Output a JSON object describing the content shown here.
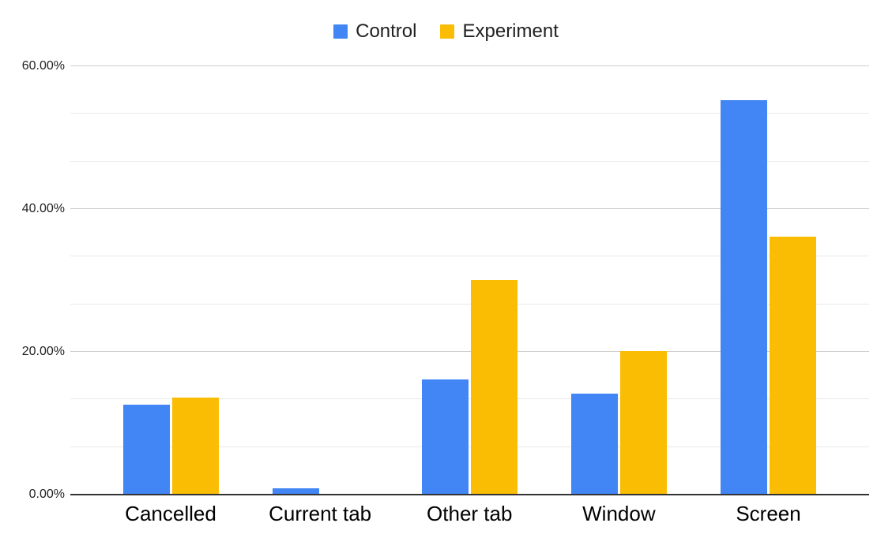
{
  "chart_data": {
    "type": "bar",
    "title": "",
    "xlabel": "",
    "ylabel": "",
    "categories": [
      "Cancelled",
      "Current tab",
      "Other tab",
      "Window",
      "Screen"
    ],
    "series": [
      {
        "name": "Control",
        "color": "#4285F4",
        "values": [
          12.5,
          0.8,
          16.0,
          14.0,
          55.1
        ]
      },
      {
        "name": "Experiment",
        "color": "#FBBC04",
        "values": [
          13.5,
          0.0,
          30.0,
          20.0,
          36.0
        ]
      }
    ],
    "value_format": "percent",
    "ylim": [
      0,
      60
    ],
    "y_ticks": [
      {
        "value": 0,
        "label": "0.00%"
      },
      {
        "value": 20,
        "label": "20.00%"
      },
      {
        "value": 40,
        "label": "40.00%"
      },
      {
        "value": 60,
        "label": "60.00%"
      }
    ],
    "minor_gridlines_per_interval": 2,
    "grid": {
      "major_color": "#cccccc",
      "minor_color": "#e9e9e9"
    },
    "axis_line_color": "#333333",
    "legend_position": "top",
    "background": "#ffffff"
  }
}
